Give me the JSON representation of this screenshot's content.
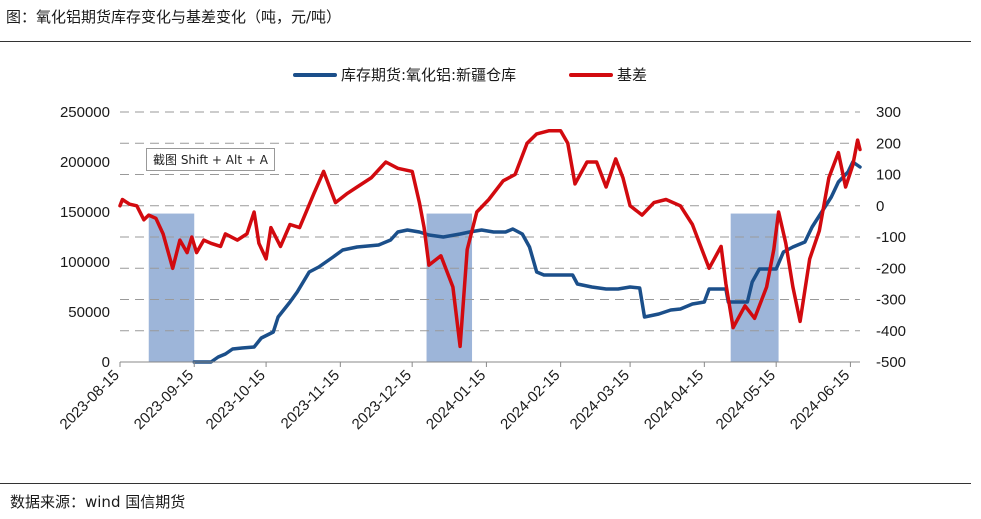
{
  "header": {
    "title": "图：氧化铝期货库存变化与基差变化（吨，元/吨）"
  },
  "footer": {
    "source": "数据来源：wind 国信期货"
  },
  "overlay": {
    "tooltip": "截图 Shift + Alt + A"
  },
  "chart_data": {
    "type": "line",
    "x_start_date": "2023-08-15",
    "x_end_date": "2024-06-19",
    "x_tick_labels": [
      "2023-08-15",
      "2023-09-15",
      "2023-10-15",
      "2023-11-15",
      "2023-12-15",
      "2024-01-15",
      "2024-02-15",
      "2024-03-15",
      "2024-04-15",
      "2024-05-15",
      "2024-06-15"
    ],
    "y_left": {
      "min": 0,
      "max": 250000,
      "ticks": [
        "0",
        "50000",
        "100000",
        "150000",
        "200000",
        "250000"
      ]
    },
    "y_right": {
      "min": -500,
      "max": 300,
      "ticks": [
        "-500",
        "-400",
        "-300",
        "-200",
        "-100",
        "0",
        "100",
        "200",
        "300"
      ]
    },
    "grid": "dashed horizontal",
    "legend_position": "top",
    "shaded_periods": [
      {
        "start": "2023-08-27",
        "end": "2023-09-15"
      },
      {
        "start": "2023-12-21",
        "end": "2024-01-09"
      },
      {
        "start": "2024-04-26",
        "end": "2024-05-16"
      }
    ],
    "series": [
      {
        "name": "库存期货:氧化铝:新疆仓库",
        "axis": "left",
        "color": "#1b4f8a",
        "points": [
          [
            "2023-09-15",
            0
          ],
          [
            "2023-09-22",
            0
          ],
          [
            "2023-09-25",
            5000
          ],
          [
            "2023-09-28",
            8000
          ],
          [
            "2023-10-01",
            13000
          ],
          [
            "2023-10-05",
            14000
          ],
          [
            "2023-10-10",
            15000
          ],
          [
            "2023-10-13",
            24000
          ],
          [
            "2023-10-18",
            30000
          ],
          [
            "2023-10-20",
            45000
          ],
          [
            "2023-10-25",
            60000
          ],
          [
            "2023-10-28",
            70000
          ],
          [
            "2023-11-02",
            90000
          ],
          [
            "2023-11-06",
            95000
          ],
          [
            "2023-11-12",
            105000
          ],
          [
            "2023-11-16",
            112000
          ],
          [
            "2023-11-22",
            115000
          ],
          [
            "2023-12-01",
            117000
          ],
          [
            "2023-12-06",
            122000
          ],
          [
            "2023-12-09",
            130000
          ],
          [
            "2023-12-13",
            132000
          ],
          [
            "2023-12-18",
            130000
          ],
          [
            "2023-12-22",
            127000
          ],
          [
            "2023-12-28",
            125000
          ],
          [
            "2024-01-04",
            128000
          ],
          [
            "2024-01-08",
            130000
          ],
          [
            "2024-01-13",
            132000
          ],
          [
            "2024-01-18",
            130000
          ],
          [
            "2024-01-23",
            130000
          ],
          [
            "2024-01-26",
            133000
          ],
          [
            "2024-01-30",
            128000
          ],
          [
            "2024-02-02",
            115000
          ],
          [
            "2024-02-05",
            90000
          ],
          [
            "2024-02-08",
            87000
          ],
          [
            "2024-02-20",
            87000
          ],
          [
            "2024-02-22",
            78000
          ],
          [
            "2024-02-28",
            75000
          ],
          [
            "2024-03-05",
            73000
          ],
          [
            "2024-03-10",
            73000
          ],
          [
            "2024-03-15",
            75000
          ],
          [
            "2024-03-19",
            74000
          ],
          [
            "2024-03-21",
            45000
          ],
          [
            "2024-03-27",
            48000
          ],
          [
            "2024-04-01",
            52000
          ],
          [
            "2024-04-05",
            53000
          ],
          [
            "2024-04-10",
            58000
          ],
          [
            "2024-04-15",
            60000
          ],
          [
            "2024-04-17",
            73000
          ],
          [
            "2024-04-24",
            73000
          ],
          [
            "2024-04-25",
            60000
          ],
          [
            "2024-05-03",
            60000
          ],
          [
            "2024-05-05",
            80000
          ],
          [
            "2024-05-08",
            93000
          ],
          [
            "2024-05-15",
            93000
          ],
          [
            "2024-05-18",
            110000
          ],
          [
            "2024-05-22",
            115000
          ],
          [
            "2024-05-27",
            120000
          ],
          [
            "2024-05-30",
            135000
          ],
          [
            "2024-06-03",
            150000
          ],
          [
            "2024-06-07",
            165000
          ],
          [
            "2024-06-10",
            180000
          ],
          [
            "2024-06-14",
            190000
          ],
          [
            "2024-06-16",
            200000
          ],
          [
            "2024-06-19",
            195000
          ]
        ]
      },
      {
        "name": "基差",
        "axis": "right",
        "color": "#d20a0f",
        "points": [
          [
            "2023-08-15",
            0
          ],
          [
            "2023-08-16",
            20
          ],
          [
            "2023-08-19",
            5
          ],
          [
            "2023-08-22",
            0
          ],
          [
            "2023-08-25",
            -45
          ],
          [
            "2023-08-27",
            -30
          ],
          [
            "2023-08-30",
            -40
          ],
          [
            "2023-09-02",
            -90
          ],
          [
            "2023-09-06",
            -200
          ],
          [
            "2023-09-09",
            -110
          ],
          [
            "2023-09-12",
            -150
          ],
          [
            "2023-09-14",
            -100
          ],
          [
            "2023-09-16",
            -150
          ],
          [
            "2023-09-19",
            -110
          ],
          [
            "2023-09-22",
            -120
          ],
          [
            "2023-09-26",
            -130
          ],
          [
            "2023-09-28",
            -90
          ],
          [
            "2023-10-03",
            -110
          ],
          [
            "2023-10-07",
            -90
          ],
          [
            "2023-10-10",
            -20
          ],
          [
            "2023-10-12",
            -120
          ],
          [
            "2023-10-15",
            -170
          ],
          [
            "2023-10-17",
            -70
          ],
          [
            "2023-10-21",
            -130
          ],
          [
            "2023-10-25",
            -60
          ],
          [
            "2023-10-29",
            -70
          ],
          [
            "2023-11-04",
            40
          ],
          [
            "2023-11-08",
            110
          ],
          [
            "2023-11-13",
            10
          ],
          [
            "2023-11-18",
            40
          ],
          [
            "2023-11-22",
            60
          ],
          [
            "2023-11-28",
            90
          ],
          [
            "2023-12-04",
            140
          ],
          [
            "2023-12-09",
            120
          ],
          [
            "2023-12-15",
            110
          ],
          [
            "2023-12-18",
            10
          ],
          [
            "2023-12-20",
            -70
          ],
          [
            "2023-12-22",
            -190
          ],
          [
            "2023-12-27",
            -160
          ],
          [
            "2024-01-01",
            -260
          ],
          [
            "2024-01-04",
            -450
          ],
          [
            "2024-01-07",
            -140
          ],
          [
            "2024-01-11",
            -20
          ],
          [
            "2024-01-16",
            20
          ],
          [
            "2024-01-22",
            80
          ],
          [
            "2024-01-27",
            100
          ],
          [
            "2024-02-01",
            200
          ],
          [
            "2024-02-05",
            230
          ],
          [
            "2024-02-10",
            240
          ],
          [
            "2024-02-15",
            240
          ],
          [
            "2024-02-18",
            200
          ],
          [
            "2024-02-21",
            70
          ],
          [
            "2024-02-26",
            140
          ],
          [
            "2024-03-01",
            140
          ],
          [
            "2024-03-05",
            60
          ],
          [
            "2024-03-09",
            150
          ],
          [
            "2024-03-12",
            90
          ],
          [
            "2024-03-15",
            0
          ],
          [
            "2024-03-20",
            -30
          ],
          [
            "2024-03-25",
            10
          ],
          [
            "2024-03-30",
            20
          ],
          [
            "2024-04-05",
            0
          ],
          [
            "2024-04-10",
            -60
          ],
          [
            "2024-04-14",
            -140
          ],
          [
            "2024-04-17",
            -200
          ],
          [
            "2024-04-22",
            -130
          ],
          [
            "2024-04-24",
            -250
          ],
          [
            "2024-04-27",
            -390
          ],
          [
            "2024-05-02",
            -320
          ],
          [
            "2024-05-06",
            -360
          ],
          [
            "2024-05-11",
            -260
          ],
          [
            "2024-05-14",
            -140
          ],
          [
            "2024-05-16",
            -20
          ],
          [
            "2024-05-19",
            -120
          ],
          [
            "2024-05-22",
            -260
          ],
          [
            "2024-05-25",
            -370
          ],
          [
            "2024-05-29",
            -170
          ],
          [
            "2024-06-02",
            -80
          ],
          [
            "2024-06-06",
            90
          ],
          [
            "2024-06-10",
            170
          ],
          [
            "2024-06-13",
            60
          ],
          [
            "2024-06-16",
            130
          ],
          [
            "2024-06-18",
            210
          ],
          [
            "2024-06-19",
            180
          ]
        ]
      }
    ]
  }
}
